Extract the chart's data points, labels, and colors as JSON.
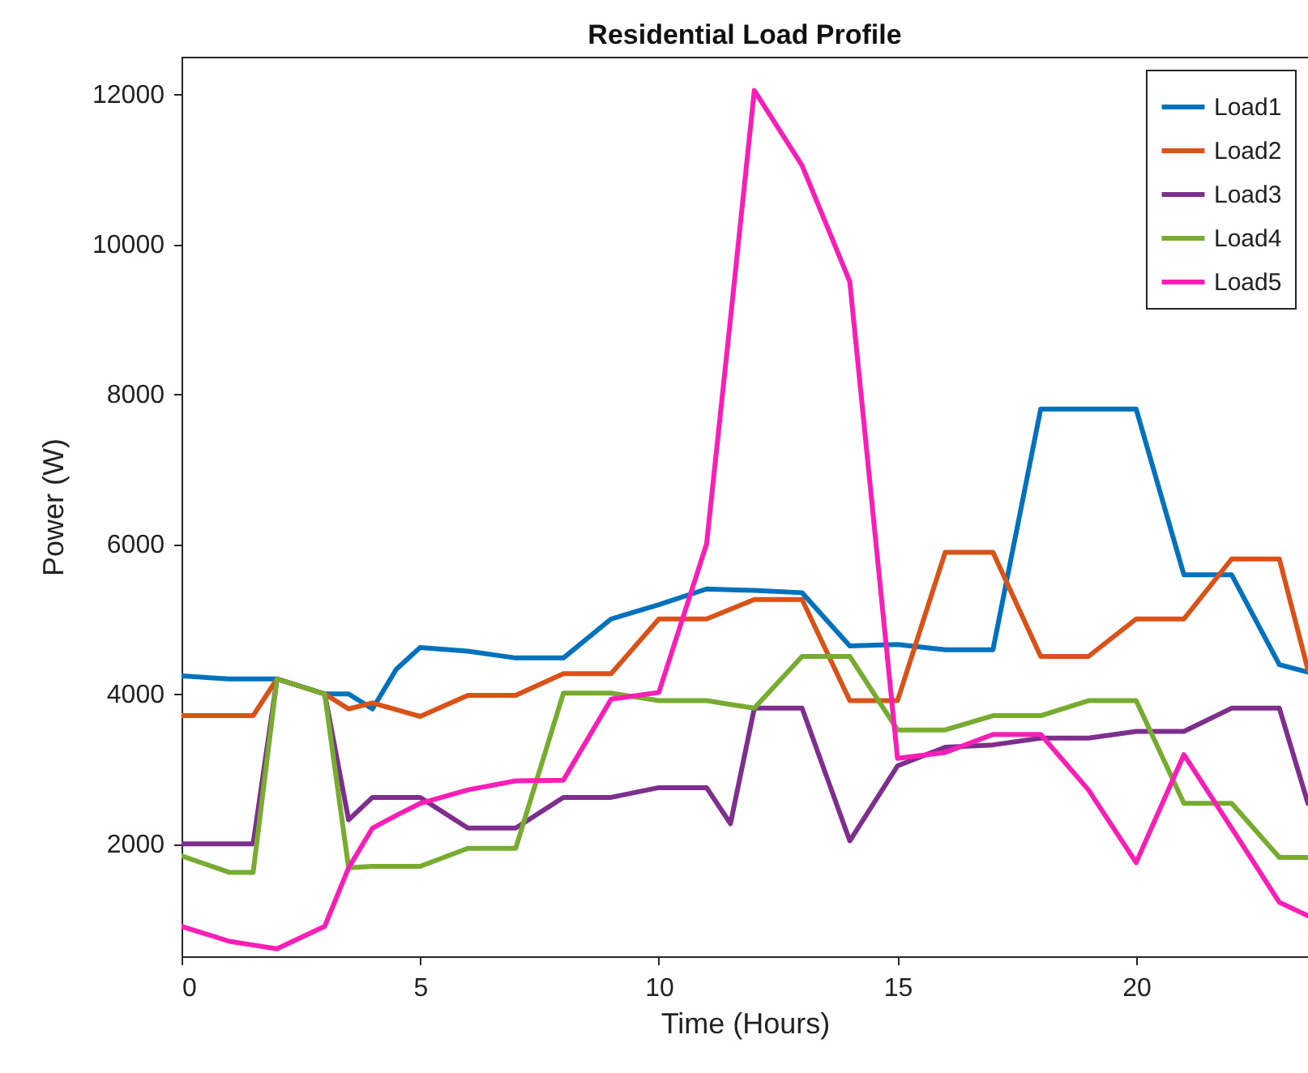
{
  "chart_data": {
    "type": "line",
    "title": "Residential Load Profile",
    "xlabel": "Time (Hours)",
    "ylabel": "Power (W)",
    "x": [
      0,
      1,
      1.5,
      2,
      3,
      3.5,
      4,
      4.5,
      5,
      6,
      7,
      8,
      9,
      10,
      11,
      11.5,
      12,
      13,
      14,
      15,
      16,
      17,
      18,
      19,
      20,
      21,
      22,
      23,
      23.6
    ],
    "series": [
      {
        "name": "Load1",
        "color": "#0072bd",
        "values": [
          4240,
          4200,
          4200,
          4200,
          4000,
          4000,
          3800,
          4330,
          4620,
          4570,
          4480,
          4480,
          5000,
          5190,
          5400,
          5390,
          5380,
          5350,
          4640,
          4660,
          4590,
          4590,
          7800,
          7800,
          7800,
          5590,
          5590,
          4390,
          4290
        ]
      },
      {
        "name": "Load2",
        "color": "#d95319",
        "values": [
          3710,
          3710,
          3710,
          4200,
          4000,
          3800,
          3880,
          3790,
          3700,
          3980,
          3980,
          4270,
          4270,
          5000,
          5000,
          5130,
          5260,
          5260,
          3910,
          3910,
          5890,
          5890,
          4500,
          4500,
          5000,
          5000,
          5800,
          5800,
          4320
        ]
      },
      {
        "name": "Load3",
        "color": "#7e2f8e",
        "values": [
          2000,
          2000,
          2000,
          4200,
          4000,
          2320,
          2620,
          2620,
          2620,
          2210,
          2210,
          2620,
          2620,
          2750,
          2750,
          2270,
          3810,
          3810,
          2040,
          3040,
          3290,
          3320,
          3410,
          3410,
          3500,
          3500,
          3810,
          3810,
          2540
        ]
      },
      {
        "name": "Load4",
        "color": "#77ac30",
        "values": [
          1840,
          1620,
          1620,
          4200,
          4000,
          1680,
          1700,
          1700,
          1700,
          1940,
          1940,
          4010,
          4010,
          3910,
          3910,
          3860,
          3810,
          4500,
          4500,
          3520,
          3520,
          3710,
          3710,
          3910,
          3910,
          2540,
          2540,
          1820,
          1820
        ]
      },
      {
        "name": "Load5",
        "color": "#f81eb6",
        "values": [
          900,
          700,
          650,
          600,
          900,
          1680,
          2210,
          2380,
          2540,
          2720,
          2840,
          2850,
          3930,
          4020,
          6000,
          9000,
          12050,
          11050,
          9500,
          3140,
          3220,
          3460,
          3460,
          2720,
          1750,
          3190,
          2210,
          1220,
          1040
        ]
      }
    ],
    "xlim": [
      0,
      23.6
    ],
    "xticks": [
      0,
      5,
      10,
      15,
      20
    ],
    "ylim": [
      500,
      12500
    ],
    "yticks": [
      2000,
      4000,
      6000,
      8000,
      10000,
      12000
    ],
    "grid": false,
    "legend": "top right",
    "line_style": "solid",
    "marker": "none"
  }
}
